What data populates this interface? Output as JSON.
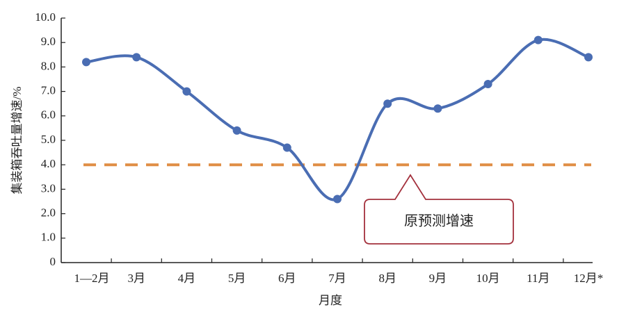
{
  "chart_data": {
    "type": "line",
    "x_label": "月度",
    "y_label": "集装箱吞吐量增速/%",
    "categories": [
      "1—2月",
      "3月",
      "4月",
      "5月",
      "6月",
      "7月",
      "8月",
      "9月",
      "10月",
      "11月",
      "12月*"
    ],
    "series": [
      {
        "color": "#4a6db3",
        "values": [
          8.2,
          8.4,
          7.0,
          5.4,
          4.7,
          2.6,
          6.5,
          6.3,
          7.3,
          9.1,
          8.4
        ]
      }
    ],
    "reference_line": {
      "value": 4.0,
      "label": "原预测增速",
      "color": "#e08e45"
    },
    "ylim": [
      0,
      10
    ],
    "yticks": [
      0,
      {
        "value": 1,
        "label": "1.0"
      },
      {
        "value": 2,
        "label": "2.0"
      },
      {
        "value": 3,
        "label": "3.0"
      },
      {
        "value": 4,
        "label": "4.0"
      },
      {
        "value": 5,
        "label": "5.0"
      },
      {
        "value": 6,
        "label": "6.0"
      },
      {
        "value": 7,
        "label": "7.0"
      },
      {
        "value": 8,
        "label": "8.0"
      },
      {
        "value": 9,
        "label": "9.0"
      },
      {
        "value": 10,
        "label": "10.0"
      }
    ],
    "smooth": true
  }
}
